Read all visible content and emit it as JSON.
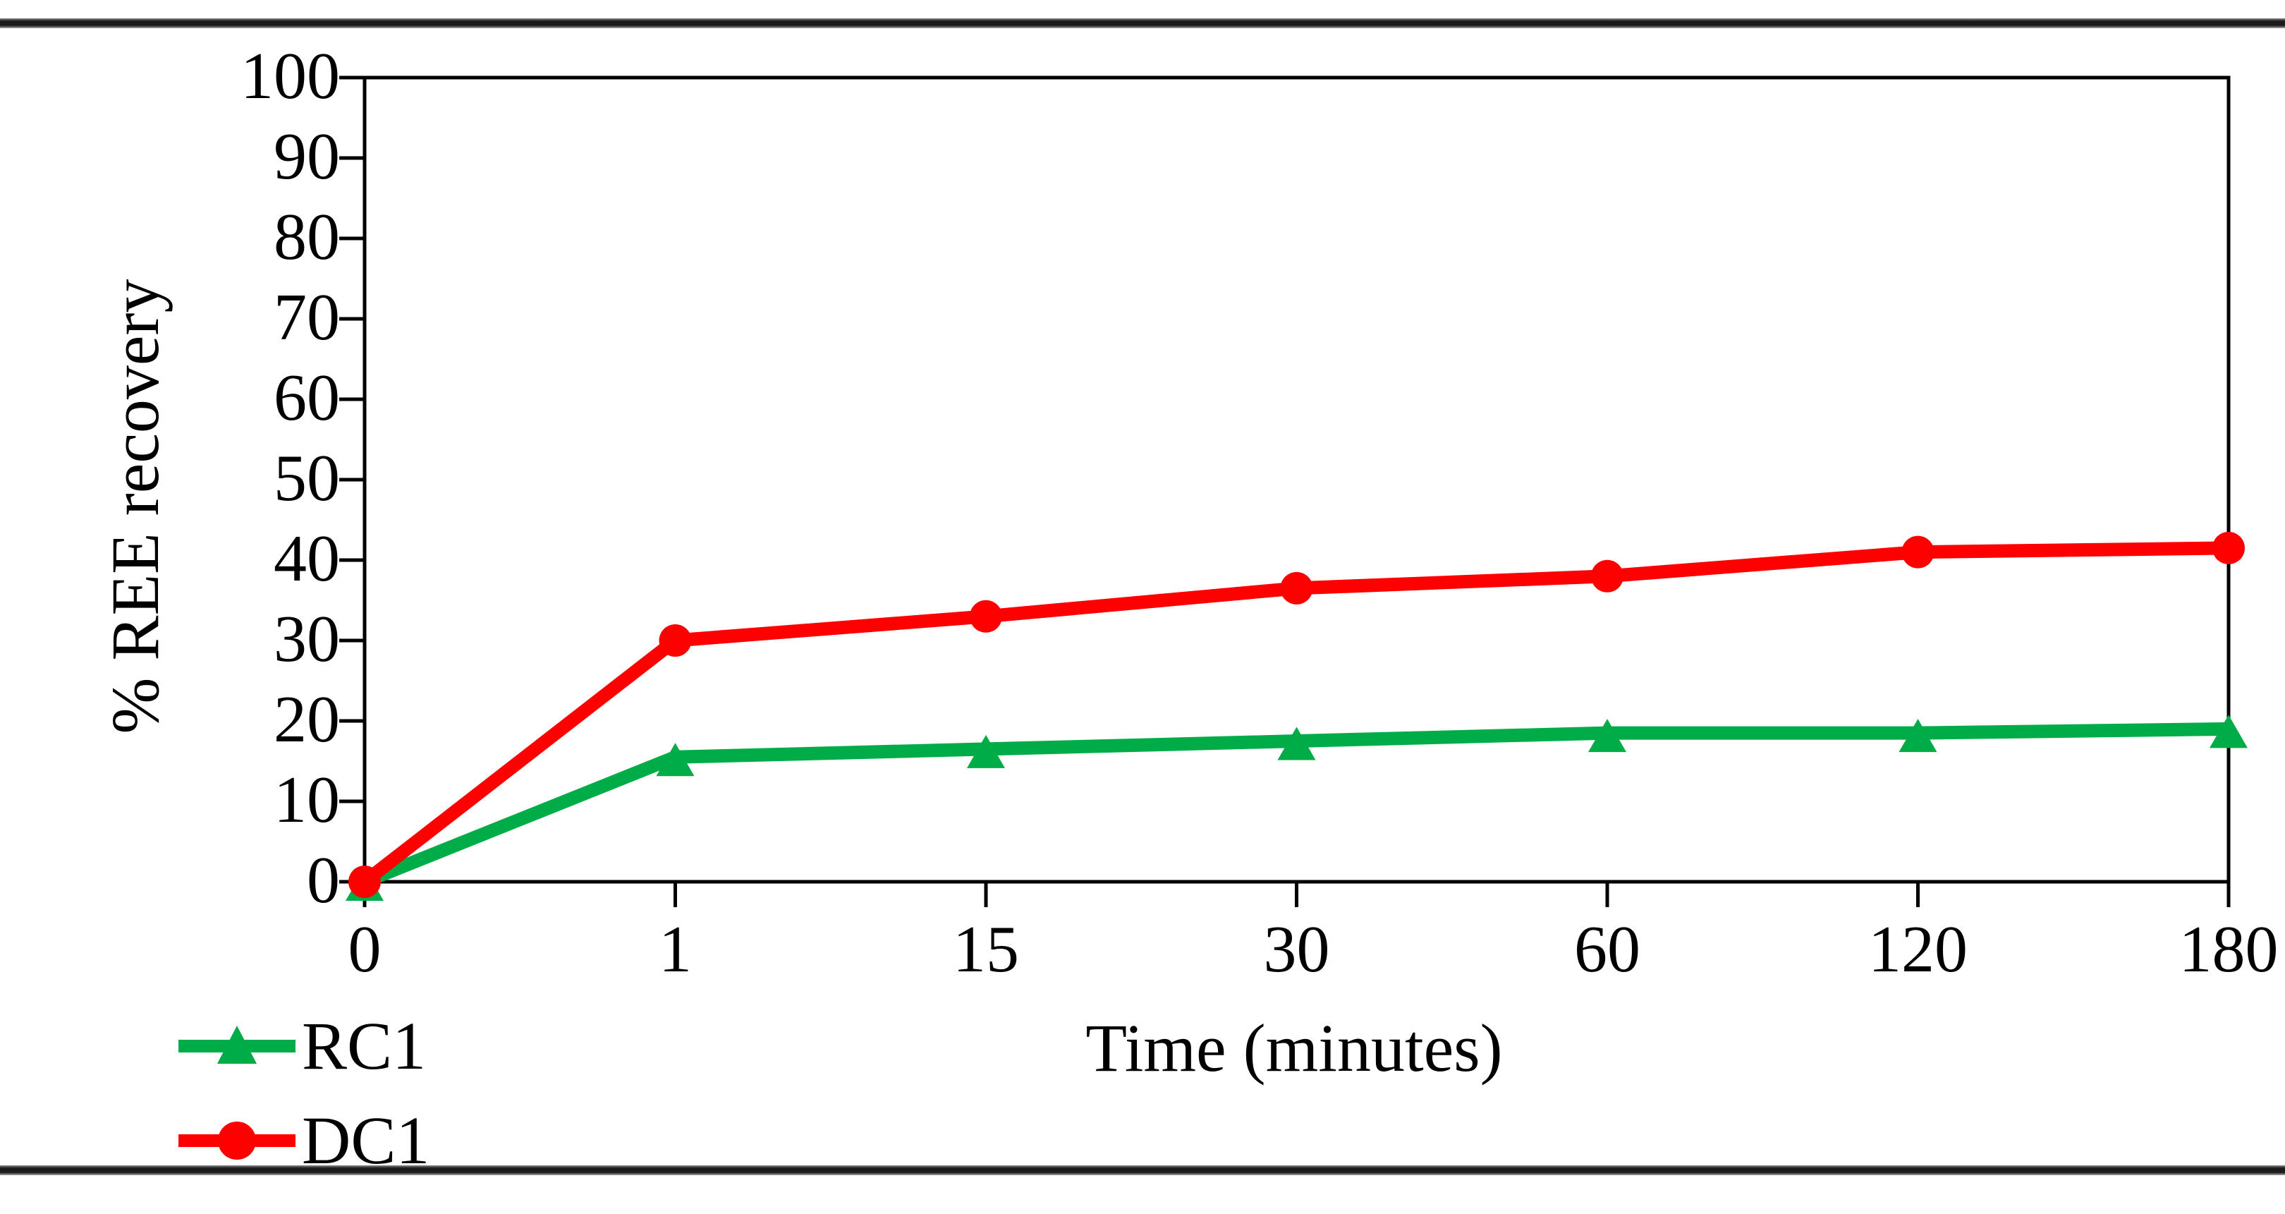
{
  "chart_data": {
    "type": "line",
    "xlabel": "Time (minutes)",
    "ylabel": "% REE recovery",
    "x_categories": [
      "0",
      "1",
      "15",
      "30",
      "60",
      "120",
      "180"
    ],
    "x_axis_style": "categorical-equal-spacing",
    "ylim": [
      0,
      100
    ],
    "yticks": [
      0,
      10,
      20,
      30,
      40,
      50,
      60,
      70,
      80,
      90,
      100
    ],
    "grid": false,
    "legend_position": "bottom-left-outside",
    "axis_color": "#000000",
    "frame": "full-box",
    "series": [
      {
        "name": "RC1",
        "color": "#00AC47",
        "marker": "triangle",
        "values": [
          0,
          15.5,
          16.5,
          17.5,
          18.5,
          18.5,
          19
        ]
      },
      {
        "name": "DC1",
        "color": "#FF0000",
        "marker": "circle",
        "values": [
          0,
          30,
          33,
          36.5,
          38,
          41,
          41.5
        ]
      }
    ]
  }
}
